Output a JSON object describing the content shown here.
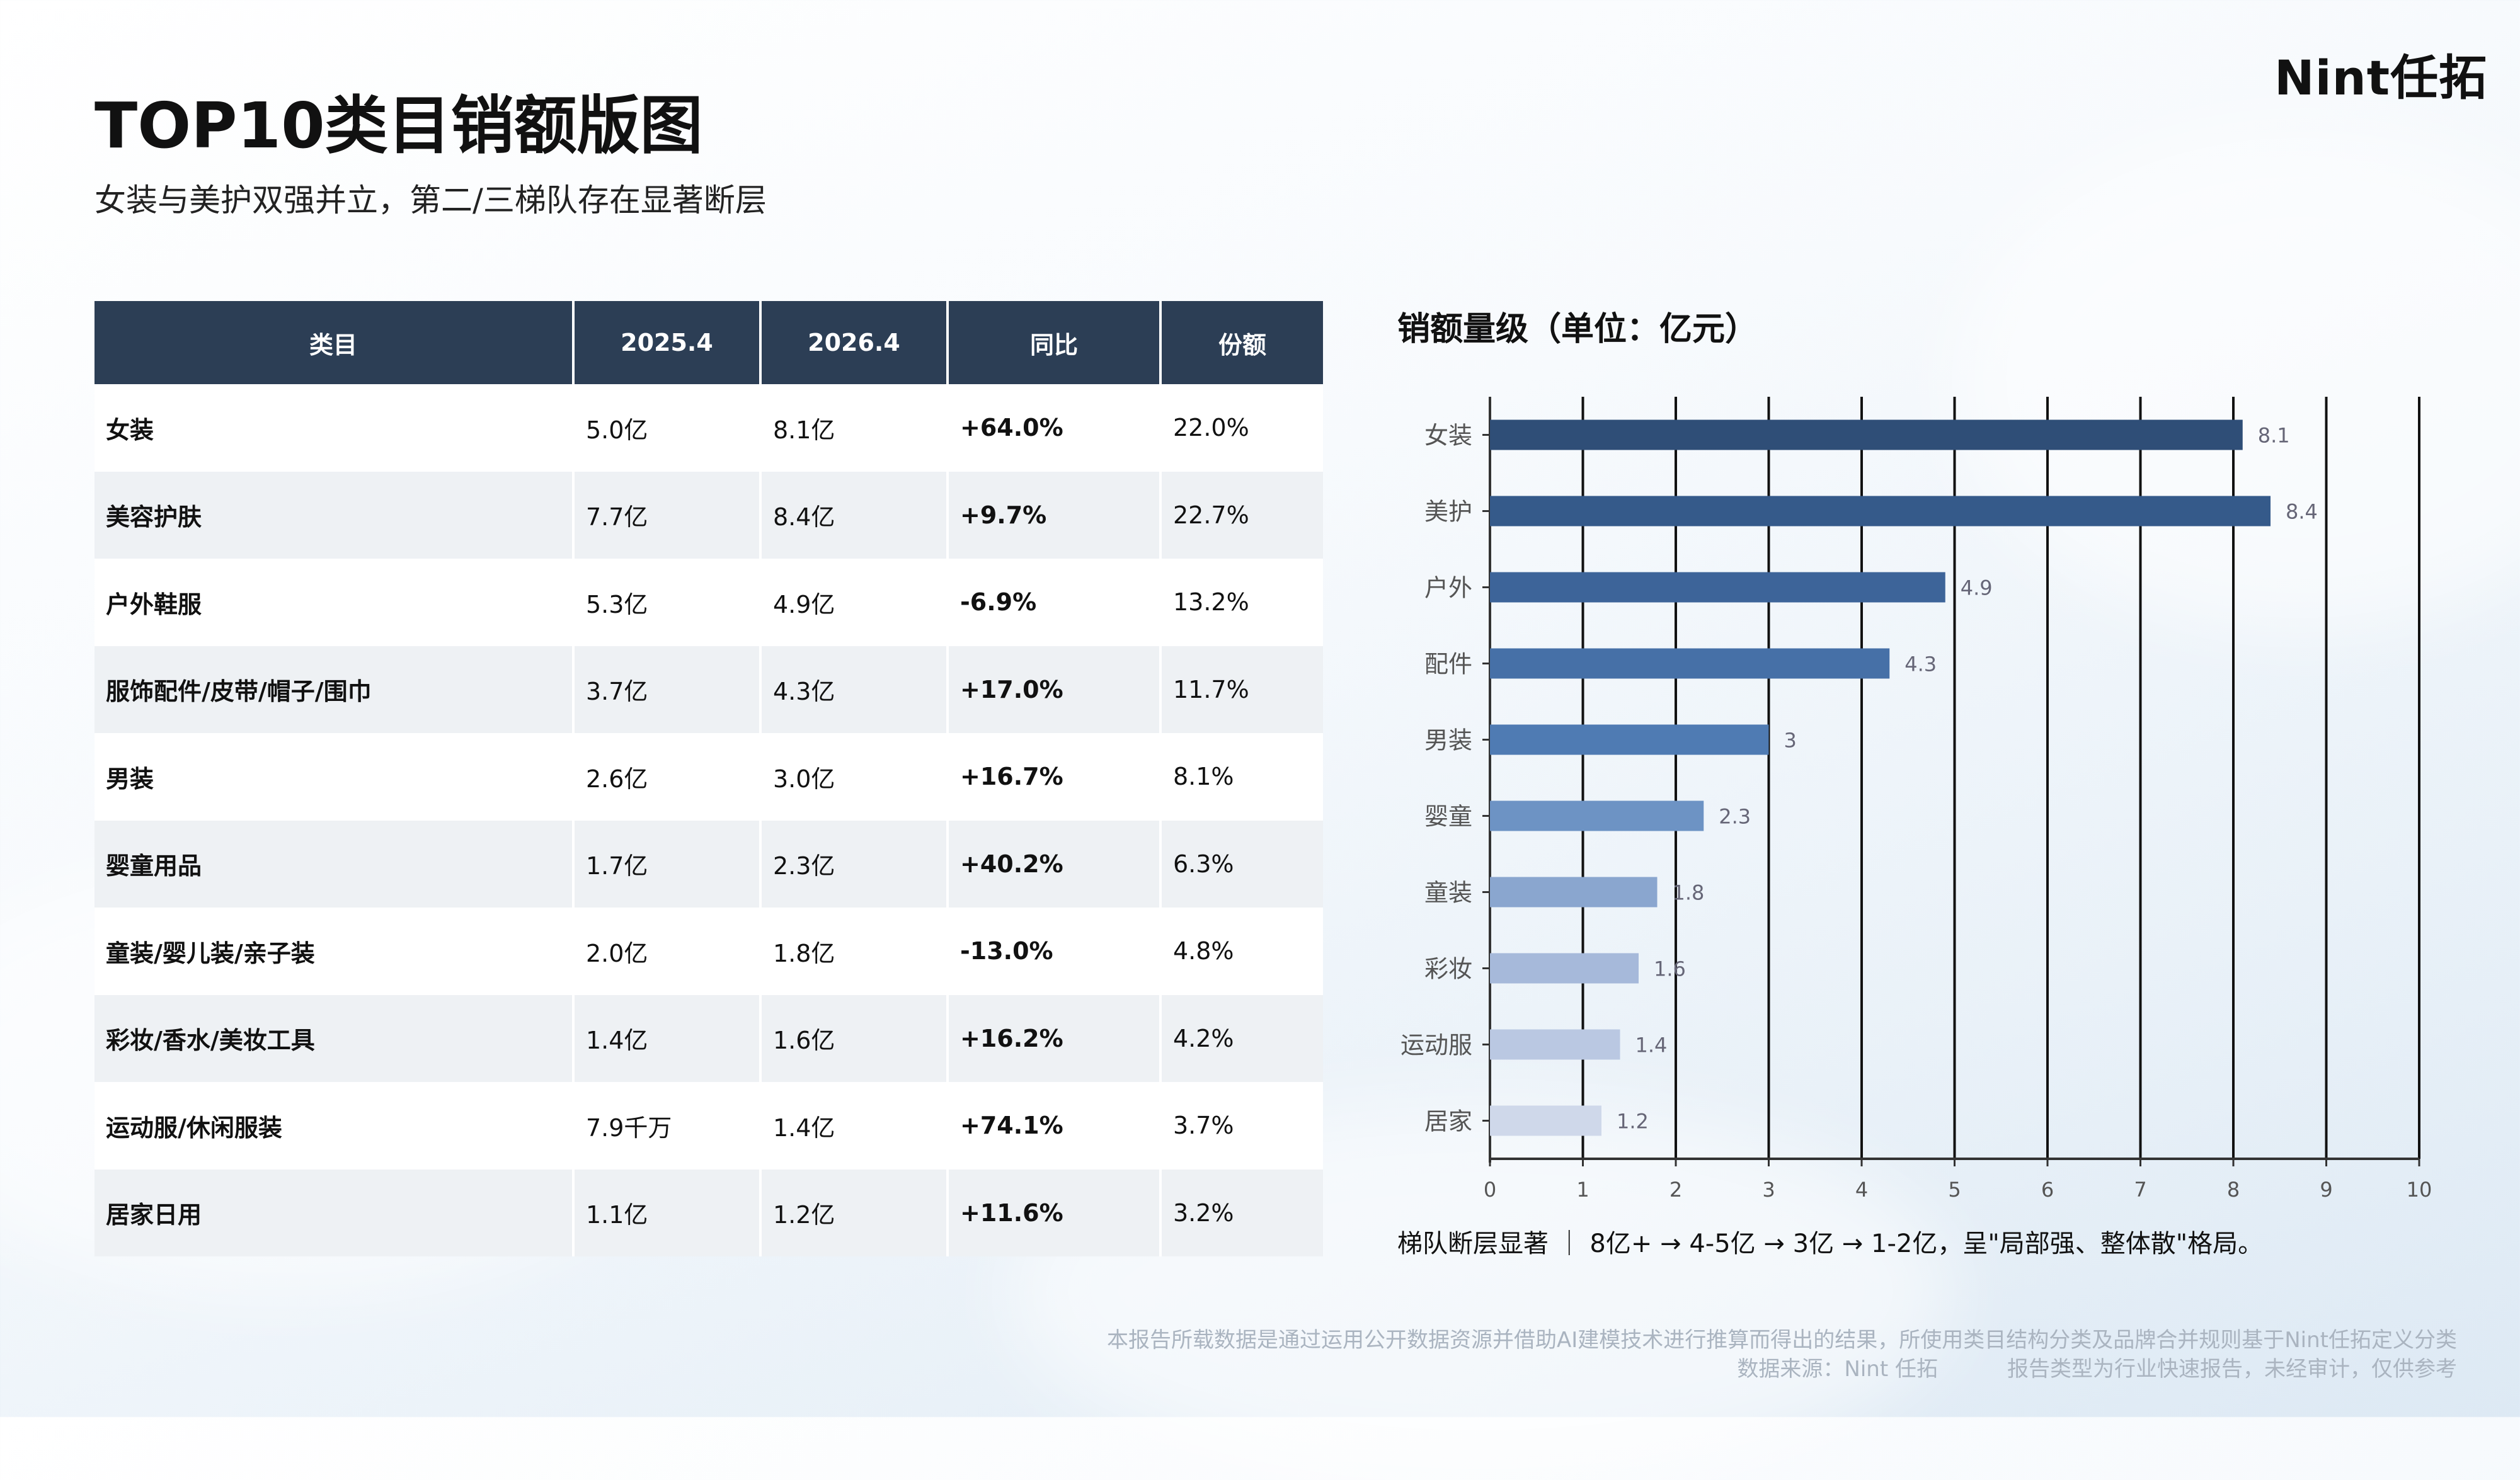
{
  "brand": {
    "logo_text": "Nint任拓"
  },
  "header": {
    "title": "TOP10类目销额版图",
    "subtitle": "女装与美护双强并立，第二/三梯队存在显著断层"
  },
  "table": {
    "headers": [
      "类目",
      "2025.4",
      "2026.4",
      "同比",
      "份额"
    ],
    "rows": [
      [
        "女装",
        "5.0亿",
        "8.1亿",
        "+64.0%",
        "22.0%"
      ],
      [
        "美容护肤",
        "7.7亿",
        "8.4亿",
        "+9.7%",
        "22.7%"
      ],
      [
        "户外鞋服",
        "5.3亿",
        "4.9亿",
        "-6.9%",
        "13.2%"
      ],
      [
        "服饰配件/皮带/帽子/围巾",
        "3.7亿",
        "4.3亿",
        "+17.0%",
        "11.7%"
      ],
      [
        "男装",
        "2.6亿",
        "3.0亿",
        "+16.7%",
        "8.1%"
      ],
      [
        "婴童用品",
        "1.7亿",
        "2.3亿",
        "+40.2%",
        "6.3%"
      ],
      [
        "童装/婴儿装/亲子装",
        "2.0亿",
        "1.8亿",
        "-13.0%",
        "4.8%"
      ],
      [
        "彩妆/香水/美妆工具",
        "1.4亿",
        "1.6亿",
        "+16.2%",
        "4.2%"
      ],
      [
        "运动服/休闲服装",
        "7.9千万",
        "1.4亿",
        "+74.1%",
        "3.7%"
      ],
      [
        "居家日用",
        "1.1亿",
        "1.2亿",
        "+11.6%",
        "3.2%"
      ]
    ]
  },
  "chart_data": {
    "type": "bar",
    "orientation": "horizontal",
    "title": "销额量级（单位：亿元）",
    "categories": [
      "女装",
      "美护",
      "户外",
      "配件",
      "男装",
      "婴童",
      "童装",
      "彩妆",
      "运动服",
      "居家"
    ],
    "values": [
      8.1,
      8.4,
      4.9,
      4.3,
      3,
      2.3,
      1.8,
      1.6,
      1.4,
      1.2
    ],
    "value_labels": [
      "8.1",
      "8.4",
      "4.9",
      "4.3",
      "3",
      "2.3",
      "1.8",
      "1.6",
      "1.4",
      "1.2"
    ],
    "xlim": [
      0,
      10
    ],
    "xticks": [
      "0",
      "1",
      "2",
      "3",
      "4",
      "5",
      "6",
      "7",
      "8",
      "9",
      "10"
    ],
    "grid": true,
    "legend": "none",
    "bar_colors": [
      "#2f4e77",
      "#355a8a",
      "#3d6499",
      "#4670a7",
      "#4f7bb3",
      "#6d93c4",
      "#8aa6cf",
      "#a6b9da",
      "#bac8e2",
      "#cfd8ea"
    ]
  },
  "note": "梯队断层显著 ｜ 8亿+ → 4-5亿 → 3亿 → 1-2亿，呈\"局部强、整体散\"格局。",
  "footer": {
    "disclaimer": "本报告所载数据是通过运用公开数据资源并借助AI建模技术进行推算而得出的结果，所使用类目结构分类及品牌合并规则基于Nint任拓定义分类",
    "source": "数据来源：Nint 任拓",
    "report_type": "报告类型为行业快速报告，未经审计，仅供参考"
  }
}
